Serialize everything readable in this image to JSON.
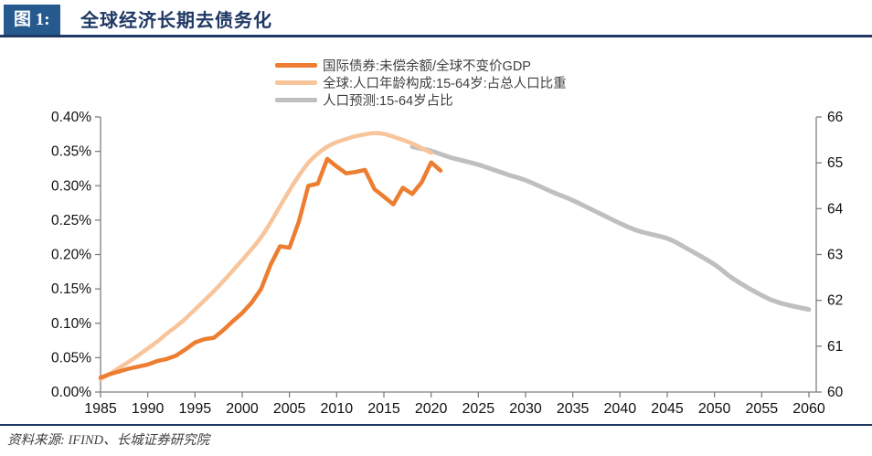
{
  "header": {
    "figure_label": "图 1:",
    "title": "全球经济长期去债务化"
  },
  "footer": {
    "source": "资料来源: IFIND、长城证券研究院"
  },
  "colors": {
    "accent_navy": "#1f3864",
    "badge_blue": "#265a8e",
    "axis_line": "#808080",
    "axis_text": "#111111",
    "orange": "#ed7d31",
    "peach": "#f8c49a",
    "gray": "#bfbfbf"
  },
  "chart_data": {
    "type": "line",
    "title": "全球经济长期去债务化",
    "legend_position": "top-center",
    "grid": false,
    "x_axis": {
      "tick_labels": [
        "1985",
        "1990",
        "1995",
        "2000",
        "2005",
        "2010",
        "2015",
        "2020",
        "2025",
        "2030",
        "2035",
        "2040",
        "2045",
        "2050",
        "2055",
        "2060"
      ],
      "tick_values": [
        1985,
        1990,
        1995,
        2000,
        2005,
        2010,
        2015,
        2020,
        2025,
        2030,
        2035,
        2040,
        2045,
        2050,
        2055,
        2060
      ],
      "range": [
        1985,
        2060
      ]
    },
    "left_axis": {
      "tick_labels": [
        "0.00%",
        "0.05%",
        "0.10%",
        "0.15%",
        "0.20%",
        "0.25%",
        "0.30%",
        "0.35%",
        "0.40%"
      ],
      "tick_values": [
        0.0,
        0.05,
        0.1,
        0.15,
        0.2,
        0.25,
        0.3,
        0.35,
        0.4
      ],
      "range": [
        0.0,
        0.4
      ]
    },
    "right_axis": {
      "tick_labels": [
        "60",
        "61",
        "62",
        "63",
        "64",
        "65",
        "66"
      ],
      "tick_values": [
        60,
        61,
        62,
        63,
        64,
        65,
        66
      ],
      "range": [
        60,
        66
      ]
    },
    "series": [
      {
        "name": "人口预测:15-64岁占比",
        "axis": "right",
        "color": "#bfbfbf",
        "width": 5,
        "smooth": true,
        "x": [
          2018,
          2020,
          2022,
          2025,
          2028,
          2030,
          2033,
          2035,
          2038,
          2040,
          2042,
          2045,
          2047,
          2050,
          2052,
          2055,
          2057,
          2060
        ],
        "values": [
          65.35,
          65.26,
          65.12,
          64.96,
          64.75,
          64.62,
          64.35,
          64.18,
          63.88,
          63.68,
          63.51,
          63.35,
          63.14,
          62.78,
          62.47,
          62.11,
          61.94,
          61.8
        ]
      },
      {
        "name": "全球:人口年龄构成:15-64岁:占总人口比重",
        "axis": "right",
        "color": "#f8c49a",
        "width": 4.5,
        "smooth": true,
        "x": [
          1985,
          1986,
          1987,
          1988,
          1989,
          1990,
          1991,
          1992,
          1993,
          1994,
          1995,
          1996,
          1997,
          1998,
          1999,
          2000,
          2001,
          2002,
          2003,
          2004,
          2005,
          2006,
          2007,
          2008,
          2009,
          2010,
          2011,
          2012,
          2013,
          2014,
          2015,
          2016,
          2017,
          2018,
          2019,
          2020
        ],
        "values": [
          60.28,
          60.4,
          60.53,
          60.66,
          60.8,
          60.95,
          61.1,
          61.27,
          61.43,
          61.6,
          61.8,
          62.0,
          62.2,
          62.42,
          62.65,
          62.88,
          63.12,
          63.38,
          63.7,
          64.05,
          64.4,
          64.72,
          65.0,
          65.2,
          65.35,
          65.45,
          65.52,
          65.58,
          65.62,
          65.65,
          65.63,
          65.57,
          65.5,
          65.42,
          65.32,
          65.22
        ]
      },
      {
        "name": "国际债券:未偿余额/全球不变价GDP",
        "axis": "left",
        "color": "#ed7d31",
        "width": 4.5,
        "smooth": false,
        "x": [
          1985,
          1986,
          1987,
          1988,
          1989,
          1990,
          1991,
          1992,
          1993,
          1994,
          1995,
          1996,
          1997,
          1998,
          1999,
          2000,
          2001,
          2002,
          2003,
          2004,
          2005,
          2006,
          2007,
          2008,
          2009,
          2010,
          2011,
          2012,
          2013,
          2014,
          2015,
          2016,
          2017,
          2018,
          2019,
          2020,
          2021
        ],
        "values": [
          0.021,
          0.026,
          0.03,
          0.034,
          0.037,
          0.04,
          0.045,
          0.048,
          0.053,
          0.062,
          0.072,
          0.077,
          0.079,
          0.09,
          0.103,
          0.115,
          0.13,
          0.15,
          0.185,
          0.212,
          0.21,
          0.248,
          0.3,
          0.303,
          0.339,
          0.328,
          0.318,
          0.32,
          0.323,
          0.295,
          0.284,
          0.273,
          0.297,
          0.288,
          0.305,
          0.334,
          0.322
        ]
      }
    ],
    "legend_order": [
      2,
      1,
      0
    ]
  }
}
